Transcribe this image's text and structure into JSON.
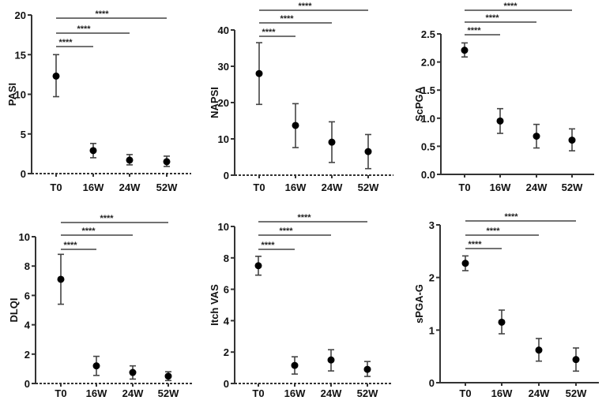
{
  "chart_data": [
    {
      "type": "scatter",
      "panel": "top-left",
      "title": "",
      "xlabel": "",
      "ylabel": "PASI",
      "categories": [
        "T0",
        "16W",
        "24W",
        "52W"
      ],
      "values": [
        12.3,
        2.9,
        1.7,
        1.5
      ],
      "error_low": [
        9.7,
        2.0,
        1.1,
        0.9
      ],
      "error_high": [
        15.0,
        3.8,
        2.4,
        2.2
      ],
      "ylim": [
        0,
        20
      ],
      "yticks": [
        0,
        5,
        10,
        15,
        20
      ],
      "ytick_labels": [
        "0",
        "5",
        "10",
        "15",
        "20"
      ],
      "dashed_baseline": true,
      "significance": [
        {
          "from": "T0",
          "to": "16W",
          "label": "****"
        },
        {
          "from": "T0",
          "to": "24W",
          "label": "****"
        },
        {
          "from": "T0",
          "to": "52W",
          "label": "****"
        }
      ],
      "grid": false,
      "legend": null
    },
    {
      "type": "scatter",
      "panel": "top-middle",
      "title": "",
      "xlabel": "",
      "ylabel": "NAPSI",
      "categories": [
        "T0",
        "16W",
        "24W",
        "52W"
      ],
      "values": [
        28.0,
        13.7,
        9.1,
        6.5
      ],
      "error_low": [
        19.5,
        7.6,
        3.5,
        1.8
      ],
      "error_high": [
        36.5,
        19.7,
        14.7,
        11.2
      ],
      "ylim": [
        0,
        40
      ],
      "yticks": [
        0,
        10,
        20,
        30,
        40
      ],
      "ytick_labels": [
        "0",
        "10",
        "20",
        "30",
        "40"
      ],
      "dashed_baseline": true,
      "significance": [
        {
          "from": "T0",
          "to": "16W",
          "label": "****"
        },
        {
          "from": "T0",
          "to": "24W",
          "label": "****"
        },
        {
          "from": "T0",
          "to": "52W",
          "label": "****"
        }
      ],
      "grid": false,
      "legend": null
    },
    {
      "type": "scatter",
      "panel": "top-right",
      "title": "",
      "xlabel": "",
      "ylabel": "ScPGA",
      "categories": [
        "T0",
        "16W",
        "24W",
        "52W"
      ],
      "values": [
        2.21,
        0.95,
        0.68,
        0.61
      ],
      "error_low": [
        2.09,
        0.73,
        0.47,
        0.42
      ],
      "error_high": [
        2.34,
        1.17,
        0.89,
        0.81
      ],
      "ylim": [
        0,
        2.5
      ],
      "yticks": [
        0,
        0.5,
        1.0,
        1.5,
        2.0,
        2.5
      ],
      "ytick_labels": [
        "0.0",
        "0.5",
        "1.0",
        "1.5",
        "2.0",
        "2.5"
      ],
      "dashed_baseline": false,
      "significance": [
        {
          "from": "T0",
          "to": "16W",
          "label": "****"
        },
        {
          "from": "T0",
          "to": "24W",
          "label": "****"
        },
        {
          "from": "T0",
          "to": "52W",
          "label": "****"
        }
      ],
      "grid": false,
      "legend": null
    },
    {
      "type": "scatter",
      "panel": "bottom-left",
      "title": "",
      "xlabel": "",
      "ylabel": "DLQI",
      "categories": [
        "T0",
        "16W",
        "24W",
        "52W"
      ],
      "values": [
        7.1,
        1.2,
        0.75,
        0.5
      ],
      "error_low": [
        5.4,
        0.55,
        0.3,
        0.2
      ],
      "error_high": [
        8.8,
        1.85,
        1.2,
        0.8
      ],
      "ylim": [
        0,
        10
      ],
      "yticks": [
        0,
        2,
        4,
        6,
        8,
        10
      ],
      "ytick_labels": [
        "0",
        "2",
        "4",
        "6",
        "8",
        "10"
      ],
      "dashed_baseline": true,
      "significance": [
        {
          "from": "T0",
          "to": "16W",
          "label": "****"
        },
        {
          "from": "T0",
          "to": "24W",
          "label": "****"
        },
        {
          "from": "T0",
          "to": "52W",
          "label": "****"
        }
      ],
      "grid": false,
      "legend": null
    },
    {
      "type": "scatter",
      "panel": "bottom-middle",
      "title": "",
      "xlabel": "",
      "ylabel": "Itch VAS",
      "categories": [
        "T0",
        "16W",
        "24W",
        "52W"
      ],
      "values": [
        7.5,
        1.15,
        1.5,
        0.9
      ],
      "error_low": [
        6.9,
        0.6,
        0.8,
        0.45
      ],
      "error_high": [
        8.1,
        1.7,
        2.15,
        1.4
      ],
      "ylim": [
        0,
        10
      ],
      "yticks": [
        0,
        2,
        4,
        6,
        8,
        10
      ],
      "ytick_labels": [
        "0",
        "2",
        "4",
        "6",
        "8",
        "10"
      ],
      "dashed_baseline": true,
      "significance": [
        {
          "from": "T0",
          "to": "16W",
          "label": "****"
        },
        {
          "from": "T0",
          "to": "24W",
          "label": "****"
        },
        {
          "from": "T0",
          "to": "52W",
          "label": "****"
        }
      ],
      "grid": false,
      "legend": null
    },
    {
      "type": "scatter",
      "panel": "bottom-right",
      "title": "",
      "xlabel": "",
      "ylabel": "sPGA-G",
      "categories": [
        "T0",
        "16W",
        "24W",
        "52W"
      ],
      "values": [
        2.27,
        1.15,
        0.62,
        0.44
      ],
      "error_low": [
        2.13,
        0.93,
        0.41,
        0.22
      ],
      "error_high": [
        2.41,
        1.38,
        0.84,
        0.66
      ],
      "ylim": [
        0,
        3
      ],
      "yticks": [
        0,
        1,
        2,
        3
      ],
      "ytick_labels": [
        "0",
        "1",
        "2",
        "3"
      ],
      "dashed_baseline": false,
      "significance": [
        {
          "from": "T0",
          "to": "16W",
          "label": "****"
        },
        {
          "from": "T0",
          "to": "24W",
          "label": "****"
        },
        {
          "from": "T0",
          "to": "52W",
          "label": "****"
        }
      ],
      "grid": false,
      "legend": null
    }
  ]
}
